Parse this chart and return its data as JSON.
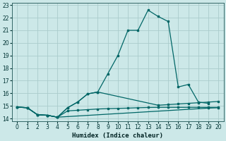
{
  "xlabel": "Humidex (Indice chaleur)",
  "bg_color": "#cce8e8",
  "grid_color": "#aacccc",
  "line_color": "#006666",
  "xlim": [
    -0.5,
    20.5
  ],
  "ylim": [
    13.8,
    23.2
  ],
  "xticks": [
    0,
    1,
    2,
    3,
    4,
    5,
    6,
    7,
    8,
    9,
    10,
    11,
    12,
    13,
    14,
    15,
    16,
    17,
    18,
    19,
    20
  ],
  "yticks": [
    14,
    15,
    16,
    17,
    18,
    19,
    20,
    21,
    22,
    23
  ],
  "series1_x": [
    0,
    1,
    2,
    3,
    4,
    5,
    6,
    7,
    8,
    9,
    10,
    11,
    12,
    13,
    14,
    15,
    16,
    17,
    18,
    19
  ],
  "series1_y": [
    14.9,
    14.85,
    14.3,
    14.25,
    14.1,
    14.85,
    15.3,
    15.95,
    16.1,
    17.55,
    19.0,
    21.0,
    21.0,
    22.6,
    22.1,
    21.7,
    16.5,
    16.7,
    15.3,
    15.2
  ],
  "series2_x": [
    0,
    1,
    2,
    3,
    4,
    5,
    6,
    7,
    8,
    14,
    15,
    16,
    17,
    18,
    19,
    20
  ],
  "series2_y": [
    14.9,
    14.85,
    14.3,
    14.25,
    14.1,
    14.85,
    15.3,
    15.95,
    16.1,
    15.05,
    15.1,
    15.15,
    15.2,
    15.25,
    15.3,
    15.35
  ],
  "series3_x": [
    0,
    1,
    2,
    3,
    4,
    5,
    6,
    7,
    8,
    9,
    10,
    11,
    12,
    13,
    14,
    15,
    16,
    17,
    18,
    19,
    20
  ],
  "series3_y": [
    14.9,
    14.85,
    14.3,
    14.25,
    14.1,
    14.6,
    14.65,
    14.7,
    14.75,
    14.78,
    14.8,
    14.82,
    14.85,
    14.87,
    14.88,
    14.88,
    14.88,
    14.88,
    14.88,
    14.88,
    14.88
  ],
  "series4_x": [
    0,
    1,
    2,
    3,
    4,
    19,
    20
  ],
  "series4_y": [
    14.9,
    14.85,
    14.3,
    14.25,
    14.1,
    14.82,
    14.85
  ]
}
